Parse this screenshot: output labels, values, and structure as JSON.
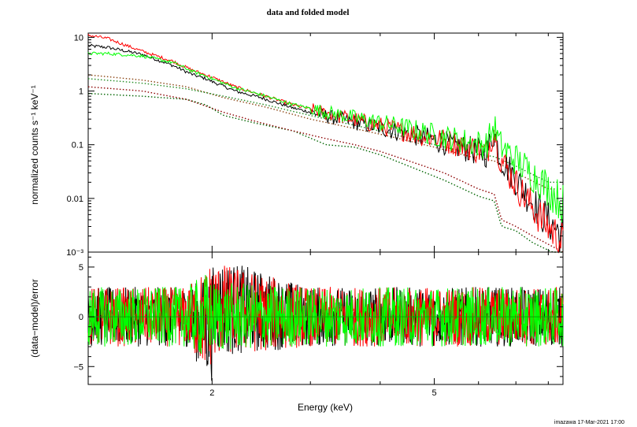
{
  "chart_data": [
    {
      "type": "line",
      "title": "data and folded model",
      "xlabel": "",
      "ylabel": "normalized counts s⁻¹ keV⁻¹",
      "xscale": "log",
      "yscale": "log",
      "xlim": [
        1.2,
        8.5
      ],
      "ylim": [
        0.001,
        12
      ],
      "ytick_labels": [
        {
          "value": 10,
          "label": "10"
        },
        {
          "value": 1,
          "label": "1"
        },
        {
          "value": 0.1,
          "label": "0.1"
        },
        {
          "value": 0.01,
          "label": "0.01"
        },
        {
          "value": 0.001,
          "label": "10⁻³"
        }
      ],
      "series": [
        {
          "color": "#000000",
          "style": "data",
          "x": [
            1.2,
            1.3,
            1.5,
            1.7,
            1.85,
            1.95,
            2.0,
            2.2,
            2.45,
            2.8,
            3.3,
            3.9,
            4.5,
            5.2,
            5.8,
            6.2,
            6.4,
            6.55,
            6.8,
            7.2,
            7.8,
            8.5
          ],
          "y": [
            7.0,
            6.5,
            4.8,
            3.0,
            2.0,
            1.7,
            1.5,
            1.0,
            0.75,
            0.48,
            0.32,
            0.22,
            0.16,
            0.11,
            0.08,
            0.07,
            0.17,
            0.06,
            0.035,
            0.015,
            0.005,
            0.002
          ]
        },
        {
          "color": "#ff0000",
          "style": "data",
          "x": [
            1.2,
            1.3,
            1.5,
            1.7,
            1.85,
            1.95,
            2.0,
            2.2,
            2.45,
            2.8,
            3.3,
            3.9,
            4.5,
            5.2,
            5.8,
            6.2,
            6.4,
            6.55,
            6.8,
            7.2,
            7.8,
            8.5
          ],
          "y": [
            11.0,
            9.5,
            5.5,
            3.6,
            2.4,
            2.0,
            1.8,
            1.2,
            0.85,
            0.55,
            0.36,
            0.24,
            0.17,
            0.12,
            0.09,
            0.07,
            0.2,
            0.06,
            0.03,
            0.012,
            0.004,
            0.0015
          ]
        },
        {
          "color": "#00ff00",
          "style": "data",
          "x": [
            1.2,
            1.3,
            1.5,
            1.7,
            1.85,
            1.95,
            2.0,
            2.2,
            2.45,
            2.8,
            3.3,
            3.9,
            4.5,
            5.2,
            5.8,
            6.2,
            6.4,
            6.55,
            6.8,
            7.2,
            7.8,
            8.5
          ],
          "y": [
            5.0,
            5.0,
            4.5,
            3.4,
            2.3,
            1.9,
            1.7,
            1.15,
            0.85,
            0.56,
            0.38,
            0.27,
            0.2,
            0.14,
            0.11,
            0.1,
            0.22,
            0.1,
            0.07,
            0.04,
            0.02,
            0.008
          ]
        },
        {
          "color": "#006400",
          "style": "dotted",
          "x": [
            1.2,
            1.5,
            1.8,
            1.95,
            2.1,
            2.4,
            2.8,
            3.2,
            3.6,
            4.0,
            4.5,
            5.2,
            6.0,
            6.4,
            6.6,
            7.0,
            7.5,
            8.5
          ],
          "y": [
            0.9,
            0.8,
            0.7,
            0.55,
            0.35,
            0.25,
            0.18,
            0.1,
            0.09,
            0.065,
            0.04,
            0.022,
            0.011,
            0.009,
            0.003,
            0.0025,
            0.0015,
            0.0008
          ]
        },
        {
          "color": "#8b0000",
          "style": "dotted",
          "x": [
            1.2,
            1.5,
            1.8,
            2.1,
            2.4,
            2.8,
            3.2,
            3.6,
            4.0,
            4.5,
            5.2,
            6.0,
            6.4,
            6.6,
            7.0,
            7.5,
            8.5
          ],
          "y": [
            1.2,
            1.0,
            0.7,
            0.4,
            0.27,
            0.18,
            0.13,
            0.1,
            0.075,
            0.05,
            0.03,
            0.015,
            0.012,
            0.004,
            0.003,
            0.002,
            0.001
          ]
        },
        {
          "color": "#8b4513",
          "style": "dotted",
          "x": [
            1.2,
            1.5,
            1.8,
            2.1,
            2.5,
            3.0,
            3.6,
            4.2,
            5.0,
            5.8,
            6.4,
            7.0,
            8.0
          ],
          "y": [
            2.0,
            1.6,
            1.2,
            0.75,
            0.5,
            0.3,
            0.2,
            0.14,
            0.09,
            0.06,
            0.05,
            0.03,
            0.015
          ]
        },
        {
          "color": "#228b22",
          "style": "dotted",
          "x": [
            1.2,
            1.5,
            1.8,
            2.1,
            2.5,
            3.0,
            3.6,
            4.2,
            5.0,
            5.8,
            6.4,
            7.0,
            8.0
          ],
          "y": [
            1.7,
            1.4,
            1.1,
            0.8,
            0.55,
            0.35,
            0.23,
            0.16,
            0.1,
            0.07,
            0.06,
            0.04,
            0.02
          ]
        }
      ]
    },
    {
      "type": "line",
      "title": "",
      "xlabel": "Energy (keV)",
      "ylabel": "(data−model)/error",
      "xscale": "log",
      "yscale": "linear",
      "xlim": [
        1.2,
        8.5
      ],
      "ylim": [
        -6.8,
        6.5
      ],
      "xtick_labels": [
        {
          "value": 2,
          "label": "2"
        },
        {
          "value": 5,
          "label": "5"
        }
      ],
      "ytick_labels": [
        {
          "value": 5,
          "label": "5"
        },
        {
          "value": 0,
          "label": "0"
        },
        {
          "value": -5,
          "label": "−5"
        }
      ],
      "series": [
        {
          "color": "#000000",
          "style": "residual-band",
          "x": [
            1.2,
            1.8,
            1.95,
            2.0,
            2.05,
            3.0,
            5.0,
            8.5
          ],
          "y_low": [
            -3.0,
            -3.0,
            -6.0,
            -6.5,
            -4.0,
            -3.0,
            -3.0,
            -3.0
          ],
          "y_high": [
            3.0,
            3.0,
            4.0,
            5.0,
            6.0,
            3.0,
            3.0,
            3.0
          ]
        },
        {
          "color": "#ff0000",
          "style": "residual-band",
          "x": [
            1.2,
            1.8,
            1.95,
            2.0,
            2.05,
            3.0,
            5.0,
            8.5
          ],
          "y_low": [
            -3.0,
            -3.0,
            -5.5,
            -5.0,
            -4.0,
            -3.0,
            -3.0,
            -3.0
          ],
          "y_high": [
            3.0,
            3.0,
            5.0,
            6.0,
            5.5,
            3.0,
            3.0,
            3.0
          ]
        },
        {
          "color": "#00ff00",
          "style": "residual-band",
          "x": [
            1.2,
            1.8,
            1.95,
            2.0,
            2.05,
            3.0,
            5.0,
            8.5
          ],
          "y_low": [
            -3.0,
            -3.0,
            -4.5,
            -3.5,
            -3.5,
            -3.0,
            -3.0,
            -3.0
          ],
          "y_high": [
            3.0,
            3.0,
            4.5,
            3.5,
            3.5,
            3.0,
            3.0,
            3.0
          ]
        }
      ]
    }
  ],
  "footer": {
    "stamp": "imazawa 17-Mar-2021 17:00"
  }
}
